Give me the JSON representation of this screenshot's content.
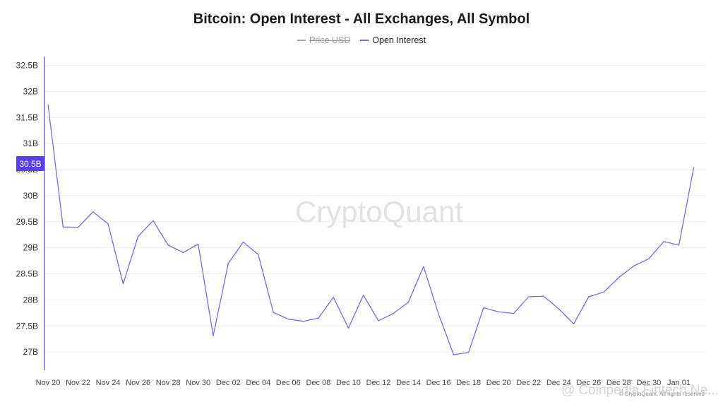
{
  "chart_data": {
    "type": "line",
    "title": "Bitcoin: Open Interest - All Exchanges, All Symbol",
    "legend": [
      {
        "name": "Price USD",
        "color": "#aaaaaa",
        "hidden": true
      },
      {
        "name": "Open Interest",
        "color": "#7b68ee",
        "hidden": false
      }
    ],
    "y_ticks": [
      "27B",
      "27.5B",
      "28B",
      "28.5B",
      "29B",
      "29.5B",
      "30B",
      "30.5B",
      "31B",
      "31.5B",
      "32B",
      "32.5B"
    ],
    "y_tick_values": [
      27,
      27.5,
      28,
      28.5,
      29,
      29.5,
      30,
      30.5,
      31,
      31.5,
      32,
      32.5
    ],
    "ylim": [
      26.65,
      32.67
    ],
    "xlim": [
      0,
      44
    ],
    "x_ticks": [
      "Nov 20",
      "Nov 22",
      "Nov 24",
      "Nov 26",
      "Nov 28",
      "Nov 30",
      "Dec 02",
      "Dec 04",
      "Dec 06",
      "Dec 08",
      "Dec 10",
      "Dec 12",
      "Dec 14",
      "Dec 16",
      "Dec 18",
      "Dec 20",
      "Dec 22",
      "Dec 24",
      "Dec 26",
      "Dec 28",
      "Dec 30",
      "Jan 01"
    ],
    "x_tick_days": [
      0,
      2,
      4,
      6,
      8,
      10,
      12,
      14,
      16,
      18,
      20,
      22,
      24,
      26,
      28,
      30,
      32,
      34,
      36,
      38,
      40,
      42
    ],
    "series": [
      {
        "name": "Open Interest",
        "unit": "B USD",
        "x": [
          0,
          1,
          2,
          3,
          4,
          5,
          6,
          7,
          8,
          9,
          10,
          11,
          12,
          13,
          14,
          15,
          16,
          17,
          18,
          19,
          20,
          21,
          22,
          23,
          24,
          25,
          26,
          27,
          28,
          29,
          30,
          31,
          32,
          33,
          34,
          35,
          36,
          37,
          38,
          39,
          40,
          41,
          42,
          43
        ],
        "values": [
          31.75,
          29.4,
          29.39,
          29.69,
          29.46,
          28.31,
          29.22,
          29.52,
          29.05,
          28.91,
          29.07,
          27.31,
          28.7,
          29.11,
          28.87,
          27.76,
          27.63,
          27.59,
          27.65,
          28.05,
          27.46,
          28.09,
          27.6,
          27.74,
          27.96,
          28.64,
          27.73,
          26.95,
          26.99,
          27.85,
          27.77,
          27.74,
          28.06,
          28.07,
          27.83,
          27.54,
          28.06,
          28.15,
          28.43,
          28.65,
          28.79,
          29.12,
          29.05,
          30.55
        ]
      }
    ],
    "current_value_label": "30.5B",
    "watermark": "CryptoQuant",
    "footer_copyright": "© CryptoQuant. All rights reserved",
    "overlay_watermark": "@ Coinpedia Fintech Ne..."
  },
  "colors": {
    "line": "#7b68ee",
    "axis": "#7b68ee",
    "badge_bg": "#5b3df5",
    "badge_text": "#ffffff"
  }
}
